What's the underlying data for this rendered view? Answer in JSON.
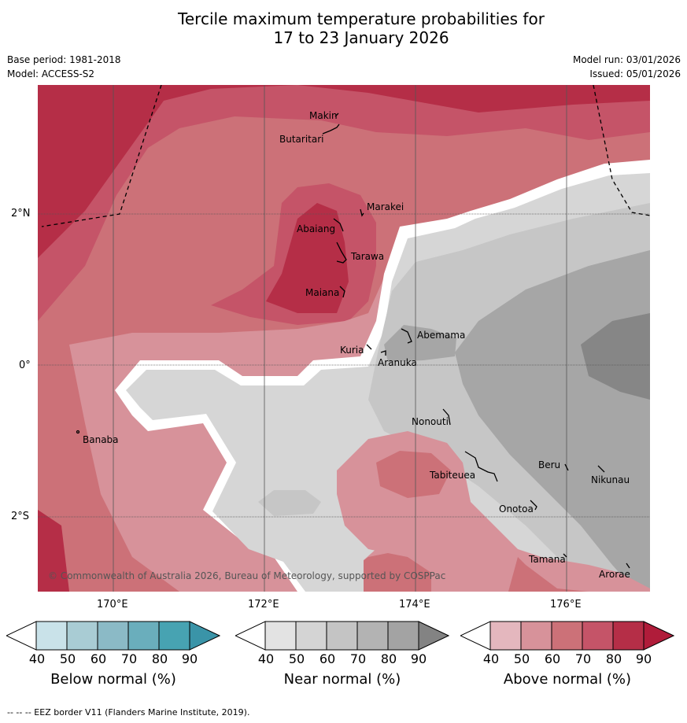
{
  "title_line1": "Tercile maximum temperature probabilities for",
  "title_line2": "17 to 23 January 2026",
  "base_period": "Base period: 1981-2018",
  "model": "Model: ACCESS-S2",
  "model_run": "Model run: 03/01/2026",
  "issued": "Issued: 05/01/2026",
  "copyright": "© Commonwealth of Australia 2026, Bureau of Meteorology, supported by COSPPac",
  "footer": "--  --  -- EEZ border V11 (Flanders Marine Institute, 2019).",
  "lat_labels": [
    "2°N",
    "0°",
    "2°S"
  ],
  "lon_labels": [
    "170°E",
    "172°E",
    "174°E",
    "176°E"
  ],
  "places": [
    {
      "name": "Makin"
    },
    {
      "name": "Butaritari"
    },
    {
      "name": "Marakei"
    },
    {
      "name": "Abaiang"
    },
    {
      "name": "Tarawa"
    },
    {
      "name": "Maiana"
    },
    {
      "name": "Abemama"
    },
    {
      "name": "Kuria"
    },
    {
      "name": "Aranuka"
    },
    {
      "name": "Banaba"
    },
    {
      "name": "Nonouti"
    },
    {
      "name": "Tabiteuea"
    },
    {
      "name": "Beru"
    },
    {
      "name": "Nikunau"
    },
    {
      "name": "Onotoa"
    },
    {
      "name": "Tamana"
    },
    {
      "name": "Arorae"
    }
  ],
  "colorbars": [
    {
      "label": "Below normal (%)",
      "ticks": [
        "40",
        "50",
        "60",
        "70",
        "80",
        "90"
      ],
      "colors": [
        "#c9e2e9",
        "#a9ccd4",
        "#8bbac6",
        "#6aaebc",
        "#47a3b2",
        "#3a94a8"
      ]
    },
    {
      "label": "Near normal (%)",
      "ticks": [
        "40",
        "50",
        "60",
        "70",
        "80",
        "90"
      ],
      "colors": [
        "#e3e3e3",
        "#d4d4d4",
        "#c4c4c4",
        "#b3b3b3",
        "#a3a3a3",
        "#838383"
      ]
    },
    {
      "label": "Above normal (%)",
      "ticks": [
        "40",
        "50",
        "60",
        "70",
        "80",
        "90"
      ],
      "colors": [
        "#e4b7be",
        "#d7929a",
        "#cc7178",
        "#c55468",
        "#b52e47",
        "#b01c3a"
      ]
    }
  ],
  "colors": {
    "above_50": "#d7929a",
    "above_60": "#cc7178",
    "above_70": "#c55468",
    "above_80": "#b52e47",
    "near_50": "#d6d6d6",
    "near_60": "#c6c6c6",
    "near_70": "#a6a6a6",
    "near_80": "#868686"
  }
}
